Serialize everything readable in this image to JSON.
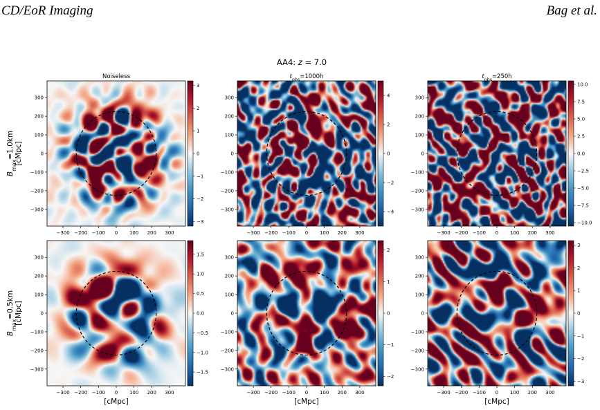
{
  "header": {
    "left": "CD/EoR Imaging",
    "right": "Bag et al."
  },
  "figure": {
    "suptitle": "AA4: z = 7.0",
    "col_titles": [
      "Noiseless",
      "t_obs=1000h",
      "t_obs=250h"
    ],
    "row_labels": [
      {
        "main": "B_max=1.0km",
        "unit": "[cMpc]"
      },
      {
        "main": "B_max=0.5km",
        "unit": "[cMpc]"
      }
    ],
    "xlabel": "[cMpc]",
    "axis_ticks": [
      "-300",
      "-200",
      "-100",
      "0",
      "100",
      "200",
      "300"
    ],
    "colors": {
      "cmap_low": "#053061",
      "cmap_mid": "#f7f7f7",
      "cmap_high": "#67001f",
      "circle": "#000000"
    }
  },
  "chart_data": {
    "type": "heatmap",
    "xlabel": "[cMpc]",
    "xlim": [
      -390,
      390
    ],
    "ylim": [
      -390,
      390
    ],
    "panels": [
      {
        "row": 0,
        "col": 0,
        "title": "Noiseless",
        "colorbar_ticks": [
          "3",
          "2",
          "1",
          "0",
          "−1",
          "−2",
          "−3"
        ],
        "colorbar_values": [
          3,
          2,
          1,
          0,
          -1,
          -2,
          -3
        ],
        "vmax": 3.2,
        "circle_radius": 225,
        "noise": 0.0,
        "smooth": 1.0
      },
      {
        "row": 0,
        "col": 1,
        "title": "t_obs=1000h",
        "colorbar_ticks": [
          "4",
          "2",
          "0",
          "−2",
          "−4"
        ],
        "colorbar_values": [
          4,
          2,
          0,
          -2,
          -4
        ],
        "vmax": 5.0,
        "circle_radius": 225,
        "noise": 0.9,
        "smooth": 1.0
      },
      {
        "row": 0,
        "col": 2,
        "title": "t_obs=250h",
        "colorbar_ticks": [
          "10.0",
          "7.5",
          "5.0",
          "2.5",
          "0.0",
          "−2.5",
          "−5.0",
          "−7.5",
          "−10.0"
        ],
        "colorbar_values": [
          10,
          7.5,
          5,
          2.5,
          0,
          -2.5,
          -5,
          -7.5,
          -10
        ],
        "vmax": 10.5,
        "circle_radius": 225,
        "noise": 1.0,
        "smooth": 1.0
      },
      {
        "row": 1,
        "col": 0,
        "title": "",
        "colorbar_ticks": [
          "1.5",
          "1.0",
          "0.5",
          "0.0",
          "−0.5",
          "−1.0",
          "−1.5"
        ],
        "colorbar_values": [
          1.5,
          1.0,
          0.5,
          0,
          -0.5,
          -1.0,
          -1.5
        ],
        "vmax": 1.85,
        "circle_radius": 225,
        "noise": 0.0,
        "smooth": 1.6
      },
      {
        "row": 1,
        "col": 1,
        "title": "",
        "colorbar_ticks": [
          "2",
          "1",
          "0",
          "−1",
          "−2"
        ],
        "colorbar_values": [
          2,
          1,
          0,
          -1,
          -2
        ],
        "vmax": 2.3,
        "circle_radius": 225,
        "noise": 0.55,
        "smooth": 1.6
      },
      {
        "row": 1,
        "col": 2,
        "title": "",
        "colorbar_ticks": [
          "3",
          "2",
          "1",
          "0",
          "−1",
          "−2",
          "−3"
        ],
        "colorbar_values": [
          3,
          2,
          1,
          0,
          -1,
          -2,
          -3
        ],
        "vmax": 3.2,
        "circle_radius": 225,
        "noise": 0.7,
        "smooth": 1.6
      }
    ]
  }
}
